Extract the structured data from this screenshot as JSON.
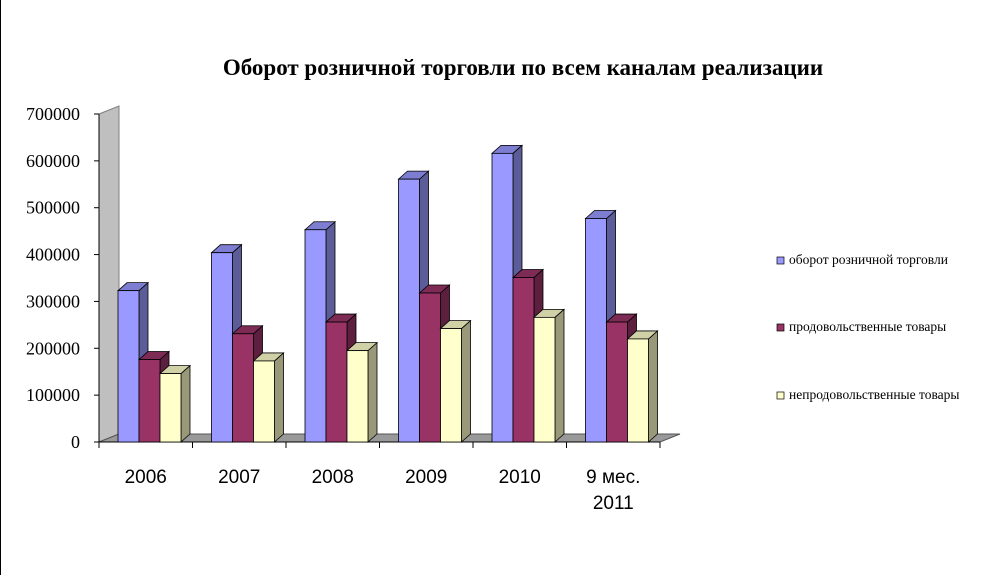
{
  "chart_data": {
    "type": "bar",
    "title": "Оборот розничной торговли по всем каналам реализации",
    "categories": [
      [
        "2006"
      ],
      [
        "2007"
      ],
      [
        "2008"
      ],
      [
        "2009"
      ],
      [
        "2010"
      ],
      [
        "9 мес.",
        "2011"
      ]
    ],
    "series": [
      {
        "name": "оборот розничной торговли",
        "color": "#9999ff",
        "values": [
          323000,
          404000,
          453000,
          561000,
          616000,
          477000
        ]
      },
      {
        "name": "продовольственные товары",
        "color": "#993366",
        "values": [
          176000,
          231000,
          256000,
          318000,
          351000,
          256000
        ]
      },
      {
        "name": "непродовольственные товары",
        "color": "#ffffcc",
        "values": [
          146000,
          173000,
          195000,
          242000,
          266000,
          220000
        ]
      }
    ],
    "yticks": [
      "0",
      "100000",
      "200000",
      "300000",
      "400000",
      "500000",
      "600000",
      "700000"
    ],
    "ylim": [
      0,
      700000
    ],
    "grid": false,
    "legend_position": "right"
  }
}
